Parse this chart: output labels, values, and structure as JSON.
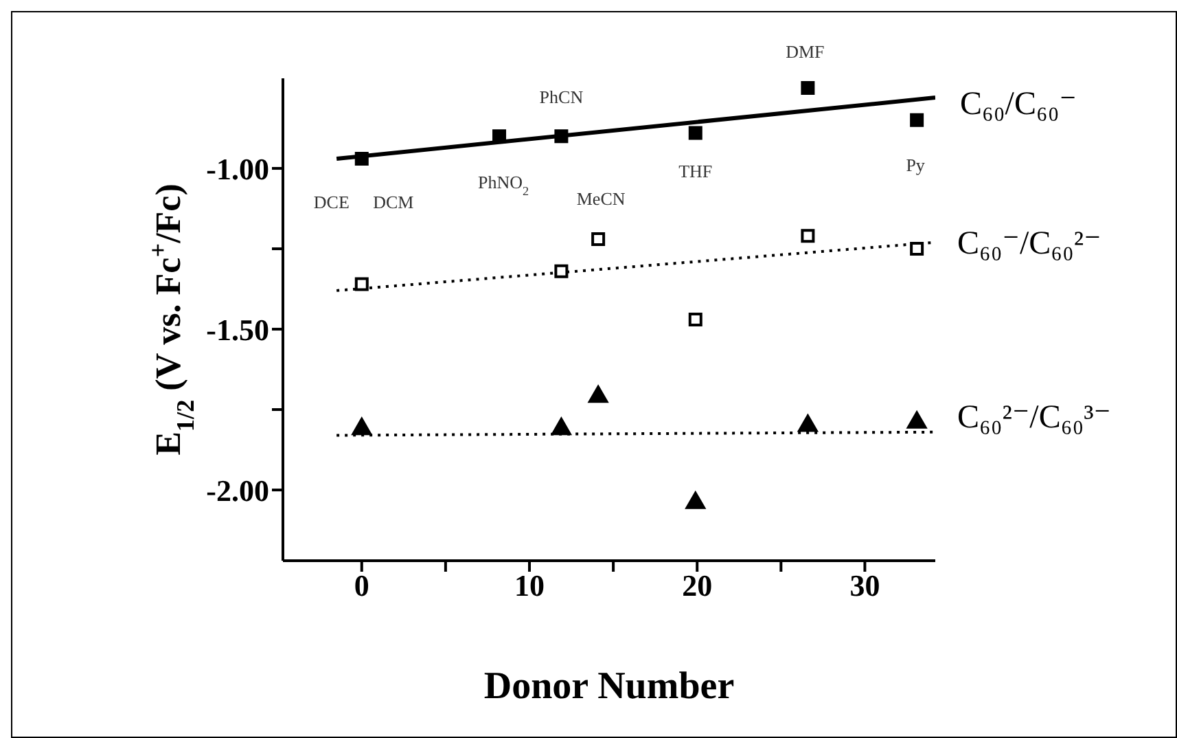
{
  "chart_data": {
    "type": "scatter",
    "xlabel": "Donor Number",
    "ylabel": "E$_{1/2}$ (V vs. Fc$^{+}$/Fc)",
    "xlim": [
      -4.7,
      34.2
    ],
    "xticks": [
      0,
      {
        "value": 5,
        "label": null
      },
      10,
      {
        "value": 15,
        "label": null
      },
      20,
      {
        "value": 25,
        "label": null
      },
      30
    ],
    "ylim": [
      -2.22,
      -0.72
    ],
    "yticks": [
      {
        "value": -1,
        "label": "-1.00"
      },
      {
        "value": -1.25,
        "label": null
      },
      {
        "value": -1.5,
        "label": "-1.50"
      },
      {
        "value": -1.75,
        "label": null
      },
      {
        "value": -2,
        "label": "-2.00"
      }
    ],
    "series": [
      {
        "name": "C₆₀/C₆₀⁻",
        "marker": "square",
        "color": "#000000",
        "x": [
          0,
          8.2,
          11.9,
          19.9,
          26.6,
          33.1
        ],
        "values": [
          -0.97,
          -0.9,
          -0.9,
          -0.89,
          -0.75,
          -0.85
        ]
      },
      {
        "name": "C₆₀⁻/C₆₀²⁻",
        "marker": "square",
        "color": "#000000",
        "x": [
          0,
          11.9,
          14.1,
          19.9,
          26.6,
          33.1
        ],
        "values": [
          -1.36,
          -1.32,
          -1.22,
          -1.47,
          -1.21,
          -1.25
        ]
      },
      {
        "name": "C₆₀²⁻/C₆₀³⁻",
        "marker": "triangle",
        "color": "#000000",
        "x": [
          0,
          11.9,
          14.1,
          19.9,
          26.6,
          33.1
        ],
        "values": [
          -1.81,
          -1.81,
          -1.71,
          -2.04,
          -1.8,
          -1.79
        ]
      },
      {
        "type": "line",
        "marker": "none",
        "line_style": "solid",
        "color": "#000000",
        "x": [
          -1.5,
          34.2
        ],
        "values": [
          -0.97,
          -0.78
        ]
      },
      {
        "type": "line",
        "marker": "none",
        "line_style": "dotted",
        "color": "#000000",
        "x": [
          -1.5,
          34.2
        ],
        "values": [
          -1.38,
          -1.23
        ]
      },
      {
        "type": "line",
        "marker": "none",
        "line_style": "dotted",
        "color": "#000000",
        "x": [
          -1.5,
          34.2
        ],
        "values": [
          -1.83,
          -1.82
        ]
      }
    ],
    "annotations": [
      {
        "text": "DCE",
        "x": 0,
        "y": -0.97
      },
      {
        "text": "DCM",
        "x": 0,
        "y": -0.97
      },
      {
        "text": "PhNO$_{2}$",
        "x": 8.2,
        "y": -0.9
      },
      {
        "text": "PhCN",
        "x": 11.9,
        "y": -0.9
      },
      {
        "text": "MeCN",
        "x": 14.1,
        "y": -1.22
      },
      {
        "text": "THF",
        "x": 19.9,
        "y": -0.89
      },
      {
        "text": "DMF",
        "x": 26.6,
        "y": -0.75
      },
      {
        "text": "Py",
        "x": 33.1,
        "y": -0.85
      }
    ]
  }
}
